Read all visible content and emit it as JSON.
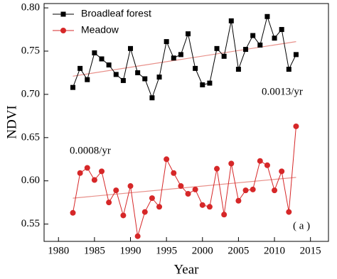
{
  "chart_data": {
    "type": "line",
    "x_label": "Year",
    "y_label": "NDVI",
    "x": [
      1982,
      1983,
      1984,
      1985,
      1986,
      1987,
      1988,
      1989,
      1990,
      1991,
      1992,
      1993,
      1994,
      1995,
      1996,
      1997,
      1998,
      1999,
      2000,
      2001,
      2002,
      2003,
      2004,
      2005,
      2006,
      2007,
      2008,
      2009,
      2010,
      2011,
      2012,
      2013
    ],
    "series": [
      {
        "name": "Broadleaf forest",
        "color": "#000000",
        "marker": "square",
        "values": [
          0.708,
          0.73,
          0.717,
          0.748,
          0.741,
          0.734,
          0.723,
          0.716,
          0.753,
          0.725,
          0.718,
          0.696,
          0.72,
          0.761,
          0.742,
          0.746,
          0.77,
          0.73,
          0.711,
          0.713,
          0.753,
          0.744,
          0.785,
          0.729,
          0.752,
          0.768,
          0.757,
          0.79,
          0.765,
          0.775,
          0.729,
          0.746
        ]
      },
      {
        "name": "Meadow",
        "color": "#d62728",
        "marker": "circle",
        "values": [
          0.563,
          0.609,
          0.615,
          0.601,
          0.611,
          0.575,
          0.589,
          0.56,
          0.594,
          0.536,
          0.564,
          0.58,
          0.57,
          0.625,
          0.609,
          0.594,
          0.585,
          0.59,
          0.572,
          0.57,
          0.614,
          0.561,
          0.62,
          0.577,
          0.589,
          0.59,
          0.623,
          0.618,
          0.589,
          0.611,
          0.564,
          0.663
        ]
      }
    ],
    "trends": [
      {
        "x": [
          1982,
          2013
        ],
        "values": [
          0.721,
          0.761
        ],
        "color": "#e8908a"
      },
      {
        "x": [
          1982,
          2013
        ],
        "values": [
          0.58,
          0.604
        ],
        "color": "#e8908a"
      }
    ],
    "annotations": [
      "0.0013/yr",
      "0.0008/yr",
      "( a )"
    ],
    "xlim": [
      1978,
      2017.5
    ],
    "xticks": [
      1980,
      1985,
      1990,
      1995,
      2000,
      2005,
      2010,
      2015
    ],
    "ylim": [
      0.53,
      0.805
    ],
    "yticks": [
      0.55,
      {
        "value": 0.6,
        "label": "0.60"
      },
      0.65,
      {
        "value": 0.7,
        "label": "0.70"
      },
      0.75,
      {
        "value": 0.8,
        "label": "0.80"
      }
    ],
    "legend": "upper left"
  }
}
